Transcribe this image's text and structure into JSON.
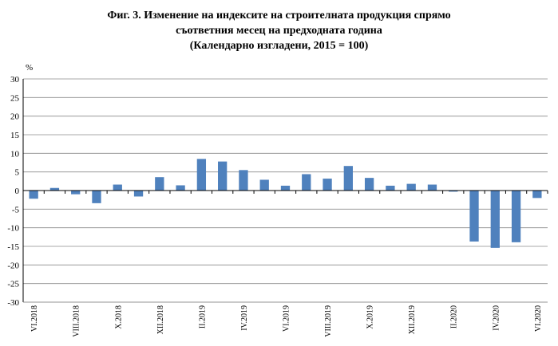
{
  "chart_data": {
    "type": "bar",
    "title_lines": [
      "Фиг. 3. Изменение на индексите на строителната продукция спрямо",
      "съответния месец на предходната година",
      "(Календарно изгладени, 2015 = 100)"
    ],
    "ylabel": "%",
    "ylim": [
      -30,
      30
    ],
    "yticks": [
      30,
      25,
      20,
      15,
      10,
      5,
      0,
      -5,
      -10,
      -15,
      -20,
      -25,
      -30
    ],
    "grid": true,
    "bar_color": "#4f81bd",
    "categories": [
      "VI.2018",
      "VII.2018",
      "VIII.2018",
      "IX.2018",
      "X.2018",
      "XI.2018",
      "XII.2018",
      "I.2019",
      "II.2019",
      "III.2019",
      "IV.2019",
      "V.2019",
      "VI.2019",
      "VII.2019",
      "VIII.2019",
      "IX.2019",
      "X.2019",
      "XI.2019",
      "XII.2019",
      "I.2020",
      "II.2020",
      "III.2020",
      "IV.2020",
      "V.2020",
      "VI.2020"
    ],
    "xtick_labels": [
      "VI.2018",
      "",
      "VIII.2018",
      "",
      "X.2018",
      "",
      "XII.2018",
      "",
      "II.2019",
      "",
      "IV.2019",
      "",
      "VI.2019",
      "",
      "VIII.2019",
      "",
      "X.2019",
      "",
      "XII.2019",
      "",
      "II.2020",
      "",
      "IV.2020",
      "",
      "VI.2020"
    ],
    "values": [
      -2.2,
      0.7,
      -1.0,
      -3.4,
      1.6,
      -1.6,
      3.6,
      1.4,
      8.5,
      7.8,
      5.5,
      2.9,
      1.3,
      4.4,
      3.2,
      6.6,
      3.4,
      1.3,
      1.8,
      1.6,
      -0.3,
      -13.7,
      -15.4,
      -13.9,
      -2.0
    ]
  }
}
